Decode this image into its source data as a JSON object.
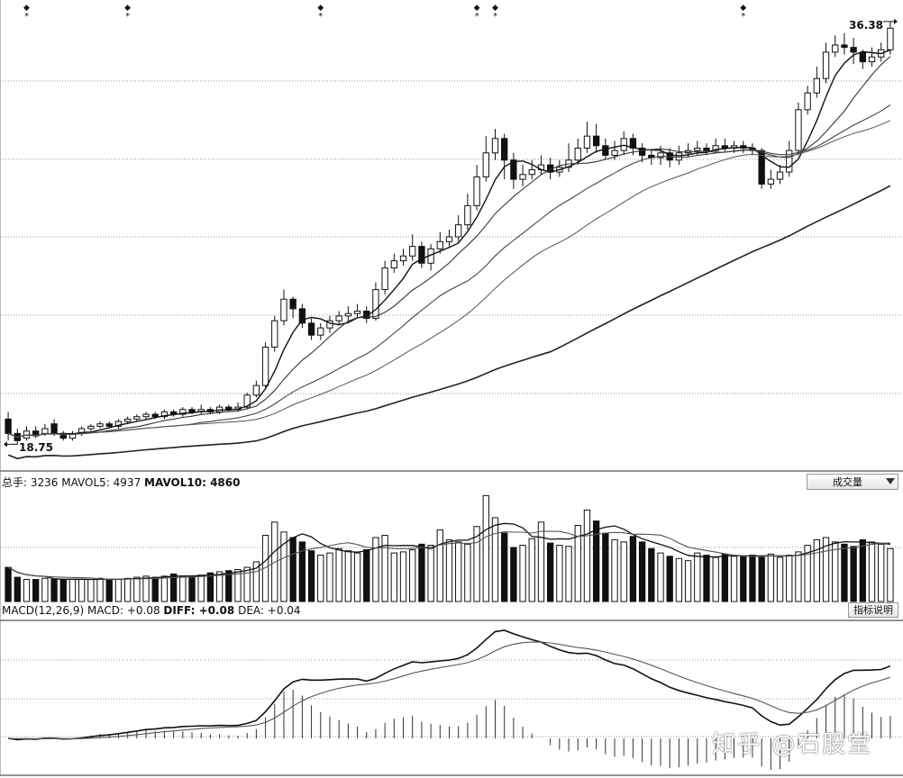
{
  "chart_data": [
    {
      "type": "candlestick",
      "title": "",
      "price_labels": {
        "high": "36.38",
        "low": "18.75"
      },
      "event_markers": [
        {
          "glyph": "◆",
          "sub": "*"
        },
        {
          "glyph": "◆",
          "sub": "*"
        },
        {
          "glyph": "◆",
          "sub": "*"
        },
        {
          "glyph": "◆",
          "sub": "*"
        },
        {
          "glyph": "◆",
          "sub": "*"
        },
        {
          "glyph": "◆",
          "sub": "*"
        }
      ],
      "candles": [
        [
          19.8,
          19.2,
          20.1,
          18.9
        ],
        [
          19.2,
          18.9,
          19.4,
          18.75
        ],
        [
          19.0,
          19.3,
          19.5,
          18.9
        ],
        [
          19.3,
          19.1,
          19.5,
          19.0
        ],
        [
          19.2,
          19.4,
          19.6,
          19.1
        ],
        [
          19.6,
          19.2,
          19.8,
          19.1
        ],
        [
          19.2,
          19.0,
          19.3,
          18.9
        ],
        [
          19.0,
          19.2,
          19.3,
          18.9
        ],
        [
          19.2,
          19.4,
          19.5,
          19.1
        ],
        [
          19.4,
          19.5,
          19.6,
          19.3
        ],
        [
          19.5,
          19.6,
          19.7,
          19.4
        ],
        [
          19.6,
          19.5,
          19.7,
          19.4
        ],
        [
          19.5,
          19.7,
          19.8,
          19.4
        ],
        [
          19.7,
          19.8,
          19.9,
          19.6
        ],
        [
          19.8,
          19.9,
          20.0,
          19.7
        ],
        [
          19.9,
          20.0,
          20.1,
          19.8
        ],
        [
          20.0,
          19.9,
          20.1,
          19.8
        ],
        [
          19.9,
          20.1,
          20.2,
          19.8
        ],
        [
          20.1,
          20.0,
          20.2,
          19.9
        ],
        [
          20.0,
          20.2,
          20.3,
          19.9
        ],
        [
          20.2,
          20.1,
          20.3,
          20.0
        ],
        [
          20.1,
          20.2,
          20.4,
          20.0
        ],
        [
          20.2,
          20.1,
          20.3,
          20.0
        ],
        [
          20.1,
          20.3,
          20.4,
          20.0
        ],
        [
          20.3,
          20.2,
          20.4,
          20.1
        ],
        [
          20.2,
          20.3,
          20.5,
          20.1
        ],
        [
          20.3,
          20.8,
          20.9,
          20.2
        ],
        [
          20.8,
          21.2,
          21.4,
          20.7
        ],
        [
          21.2,
          22.8,
          23.0,
          21.1
        ],
        [
          22.8,
          23.9,
          24.1,
          22.6
        ],
        [
          23.9,
          24.8,
          25.2,
          23.7
        ],
        [
          24.8,
          24.4,
          24.9,
          24.0
        ],
        [
          24.4,
          23.8,
          24.6,
          23.6
        ],
        [
          23.8,
          23.3,
          24.0,
          23.1
        ],
        [
          23.3,
          23.6,
          23.8,
          23.1
        ],
        [
          23.6,
          23.9,
          24.1,
          23.4
        ],
        [
          23.9,
          24.1,
          24.3,
          23.7
        ],
        [
          24.1,
          24.2,
          24.5,
          23.9
        ],
        [
          24.2,
          24.3,
          24.6,
          24.0
        ],
        [
          24.3,
          24.0,
          24.5,
          23.8
        ],
        [
          24.0,
          25.2,
          25.5,
          23.9
        ],
        [
          25.2,
          26.1,
          26.4,
          25.0
        ],
        [
          26.1,
          26.4,
          26.7,
          25.9
        ],
        [
          26.4,
          26.6,
          26.9,
          26.2
        ],
        [
          26.6,
          27.0,
          27.5,
          26.4
        ],
        [
          27.0,
          26.3,
          27.2,
          26.1
        ],
        [
          26.3,
          26.9,
          27.1,
          26.0
        ],
        [
          26.9,
          27.2,
          27.6,
          26.7
        ],
        [
          27.2,
          27.4,
          27.7,
          27.0
        ],
        [
          27.4,
          27.9,
          28.3,
          27.2
        ],
        [
          27.9,
          28.7,
          29.2,
          27.7
        ],
        [
          28.7,
          29.9,
          30.4,
          28.5
        ],
        [
          29.9,
          30.9,
          31.6,
          29.7
        ],
        [
          30.9,
          31.5,
          31.9,
          30.6
        ],
        [
          31.5,
          30.6,
          31.7,
          29.8
        ],
        [
          30.6,
          29.8,
          30.9,
          29.4
        ],
        [
          29.8,
          30.0,
          30.4,
          29.5
        ],
        [
          30.0,
          30.2,
          30.6,
          29.8
        ],
        [
          30.2,
          30.4,
          30.8,
          30.0
        ],
        [
          30.4,
          30.1,
          30.7,
          29.8
        ],
        [
          30.1,
          30.3,
          30.6,
          29.9
        ],
        [
          30.3,
          30.6,
          31.3,
          30.1
        ],
        [
          30.6,
          31.1,
          31.5,
          30.4
        ],
        [
          31.1,
          31.6,
          32.2,
          30.9
        ],
        [
          31.6,
          31.2,
          32.1,
          30.9
        ],
        [
          31.2,
          30.8,
          31.5,
          30.6
        ],
        [
          30.8,
          31.0,
          31.4,
          30.6
        ],
        [
          31.0,
          31.5,
          31.8,
          30.8
        ],
        [
          31.5,
          31.1,
          31.7,
          30.8
        ],
        [
          31.1,
          30.8,
          31.3,
          30.5
        ],
        [
          30.8,
          30.7,
          31.0,
          30.4
        ],
        [
          30.7,
          30.9,
          31.2,
          30.4
        ],
        [
          30.9,
          30.6,
          31.1,
          30.3
        ],
        [
          30.6,
          30.9,
          31.2,
          30.4
        ],
        [
          30.9,
          31.0,
          31.3,
          30.7
        ],
        [
          31.0,
          31.1,
          31.4,
          30.8
        ],
        [
          31.1,
          31.0,
          31.3,
          30.8
        ],
        [
          31.0,
          31.2,
          31.5,
          30.9
        ],
        [
          31.2,
          31.1,
          31.5,
          30.9
        ],
        [
          31.1,
          31.2,
          31.4,
          30.9
        ],
        [
          31.2,
          31.1,
          31.4,
          30.9
        ],
        [
          31.1,
          31.0,
          31.3,
          30.8
        ],
        [
          31.0,
          29.6,
          31.1,
          29.4
        ],
        [
          29.6,
          29.8,
          30.2,
          29.4
        ],
        [
          29.8,
          30.1,
          30.4,
          29.6
        ],
        [
          30.1,
          31.0,
          31.4,
          29.9
        ],
        [
          31.0,
          32.7,
          33.0,
          30.8
        ],
        [
          32.7,
          33.4,
          33.7,
          32.5
        ],
        [
          33.4,
          34.0,
          34.5,
          33.2
        ],
        [
          34.0,
          35.1,
          35.5,
          33.8
        ],
        [
          35.1,
          35.4,
          35.8,
          34.9
        ],
        [
          35.4,
          35.3,
          35.9,
          35.0
        ],
        [
          35.3,
          35.1,
          35.7,
          34.6
        ],
        [
          35.1,
          34.7,
          35.2,
          34.4
        ],
        [
          34.7,
          34.9,
          35.3,
          34.5
        ],
        [
          34.9,
          35.2,
          35.5,
          34.7
        ],
        [
          35.2,
          36.1,
          36.38,
          35.0
        ]
      ]
    },
    {
      "type": "bar",
      "title": "",
      "legend": {
        "total_label": "总手",
        "total": "3236",
        "ma5_label": "MAVOL5",
        "ma5": "4937",
        "ma10_label": "MAVOL10",
        "ma10": "4860"
      },
      "indicator_select": "成交量",
      "values": [
        3.1,
        2.2,
        2.0,
        2.0,
        2.1,
        2.0,
        2.0,
        2.0,
        2.0,
        2.0,
        2.1,
        2.0,
        2.0,
        2.1,
        2.2,
        2.3,
        2.2,
        2.3,
        2.5,
        2.3,
        2.3,
        2.4,
        2.6,
        2.7,
        2.8,
        2.9,
        3.1,
        3.6,
        6.0,
        7.2,
        6.3,
        5.8,
        5.4,
        4.6,
        4.2,
        4.4,
        4.8,
        4.6,
        4.4,
        4.7,
        5.8,
        6.0,
        4.4,
        4.5,
        4.7,
        5.2,
        5.1,
        6.5,
        5.6,
        5.4,
        5.2,
        6.8,
        9.6,
        7.6,
        6.2,
        4.9,
        5.1,
        5.7,
        7.2,
        5.3,
        5.1,
        5.0,
        6.9,
        8.3,
        7.3,
        6.2,
        5.6,
        5.4,
        5.9,
        5.4,
        4.8,
        4.4,
        4.1,
        3.9,
        3.7,
        4.4,
        4.2,
        4.0,
        4.3,
        4.1,
        4.1,
        4.2,
        4.0,
        4.3,
        4.0,
        4.2,
        4.5,
        5.1,
        5.6,
        5.8,
        5.4,
        5.2,
        5.0,
        5.6,
        5.4,
        5.2,
        4.8
      ]
    },
    {
      "type": "line",
      "title": "",
      "legend": {
        "name": "MACD(12,26,9)",
        "macd_label": "MACD",
        "macd": "+0.08",
        "diff_label": "DIFF",
        "diff": "+0.08",
        "dea_label": "DEA",
        "dea": "+0.04"
      },
      "button": "指标说明"
    }
  ],
  "watermark": "知乎 @石股堂"
}
